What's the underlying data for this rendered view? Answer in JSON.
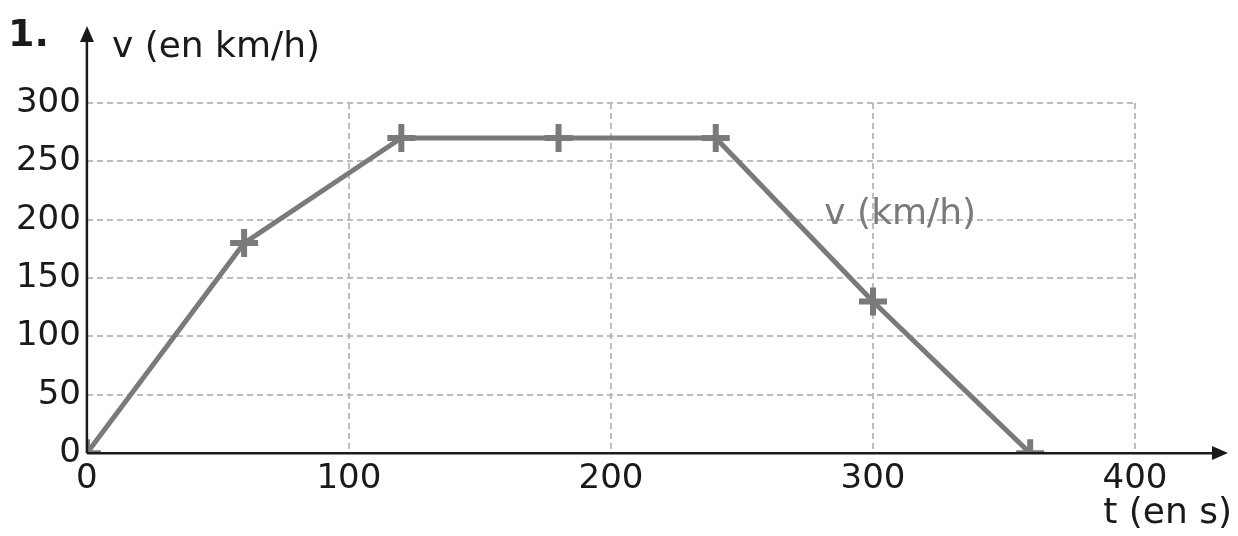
{
  "chart_data": {
    "type": "line",
    "xlabel": "t (en s)",
    "ylabel": "v (en km/h)",
    "annotations": [
      "1."
    ],
    "x": [
      0,
      60,
      120,
      180,
      240,
      300,
      360
    ],
    "series": [
      {
        "name": "v (km/h)",
        "color": "#7a7a7a",
        "values": [
          0,
          180,
          270,
          270,
          270,
          130,
          0
        ]
      }
    ],
    "xlim": [
      0,
      400
    ],
    "ylim": [
      0,
      300
    ],
    "xticks": [
      0,
      100,
      200,
      300,
      400
    ],
    "yticks": [
      0,
      50,
      100,
      150,
      200,
      250,
      300
    ],
    "grid": true,
    "legend": false,
    "marker": "cross",
    "line_style": "solid"
  }
}
